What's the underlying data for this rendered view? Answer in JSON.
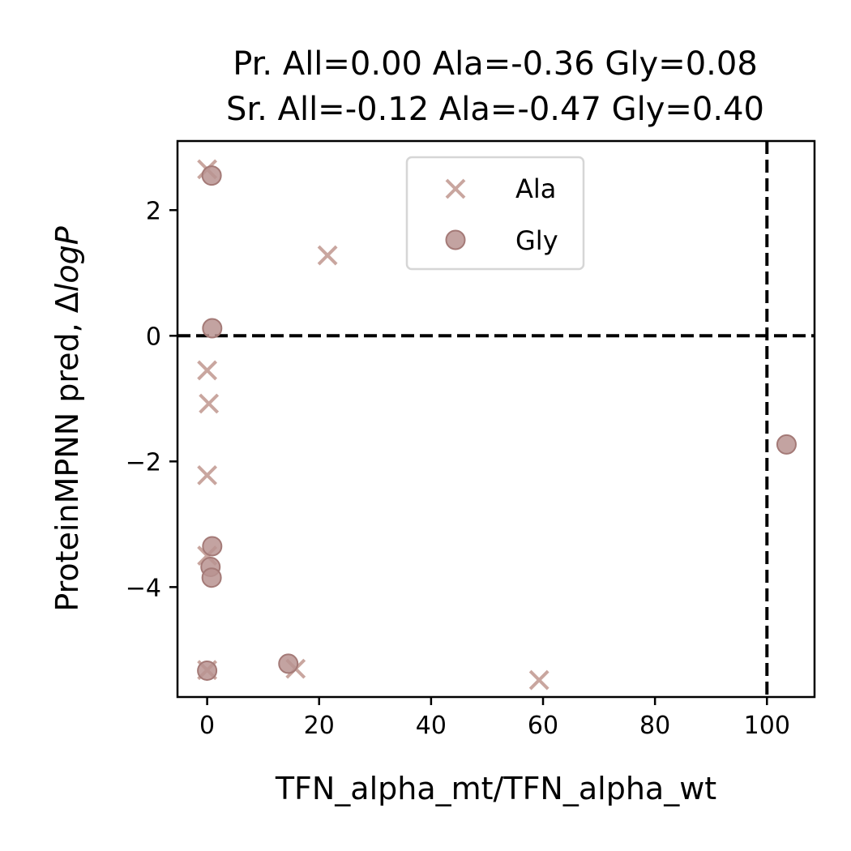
{
  "chart_data": {
    "type": "scatter",
    "title_lines": [
      "Pr. All=0.00 Ala=-0.36 Gly=0.08",
      "Sr. All=-0.12 Ala=-0.47 Gly=0.40"
    ],
    "xlabel": "TFN_alpha_mt/TFN_alpha_wt",
    "ylabel_prefix": "ProteinMPNN pred, Δ",
    "ylabel_italic": "logP",
    "xlim": [
      -5.3,
      108.5
    ],
    "ylim": [
      -5.75,
      3.1
    ],
    "x_ticks": [
      0,
      20,
      40,
      60,
      80,
      100
    ],
    "x_tick_labels": [
      "0",
      "20",
      "40",
      "60",
      "80",
      "100"
    ],
    "y_ticks": [
      2,
      0,
      -2,
      -4
    ],
    "y_tick_labels": [
      "2",
      "0",
      "−2",
      "−4"
    ],
    "reference_lines": {
      "x": 100,
      "y": 0,
      "style": "dashed",
      "color": "#000000"
    },
    "legend": {
      "position": "upper center",
      "items": [
        {
          "label": "Ala",
          "marker": "x"
        },
        {
          "label": "Gly",
          "marker": "circle"
        }
      ]
    },
    "series": [
      {
        "name": "Ala",
        "marker": "x",
        "color": "#c9a69f",
        "points": [
          {
            "x": 0,
            "y": 2.65
          },
          {
            "x": 21.5,
            "y": 1.28
          },
          {
            "x": 0,
            "y": -0.55
          },
          {
            "x": 0.3,
            "y": -1.08
          },
          {
            "x": 0,
            "y": -2.22
          },
          {
            "x": 0,
            "y": -3.5
          },
          {
            "x": 0,
            "y": -5.32
          },
          {
            "x": 15.8,
            "y": -5.3
          },
          {
            "x": 59.3,
            "y": -5.48
          }
        ]
      },
      {
        "name": "Gly",
        "marker": "circle",
        "color": "#b99390",
        "edge_color": "#a47a77",
        "points": [
          {
            "x": 0.8,
            "y": 2.55
          },
          {
            "x": 0.9,
            "y": 0.12
          },
          {
            "x": 103.5,
            "y": -1.73
          },
          {
            "x": 0.9,
            "y": -3.35
          },
          {
            "x": 0.6,
            "y": -3.68
          },
          {
            "x": 0.8,
            "y": -3.85
          },
          {
            "x": 0,
            "y": -5.33
          },
          {
            "x": 14.5,
            "y": -5.22
          }
        ]
      }
    ]
  }
}
